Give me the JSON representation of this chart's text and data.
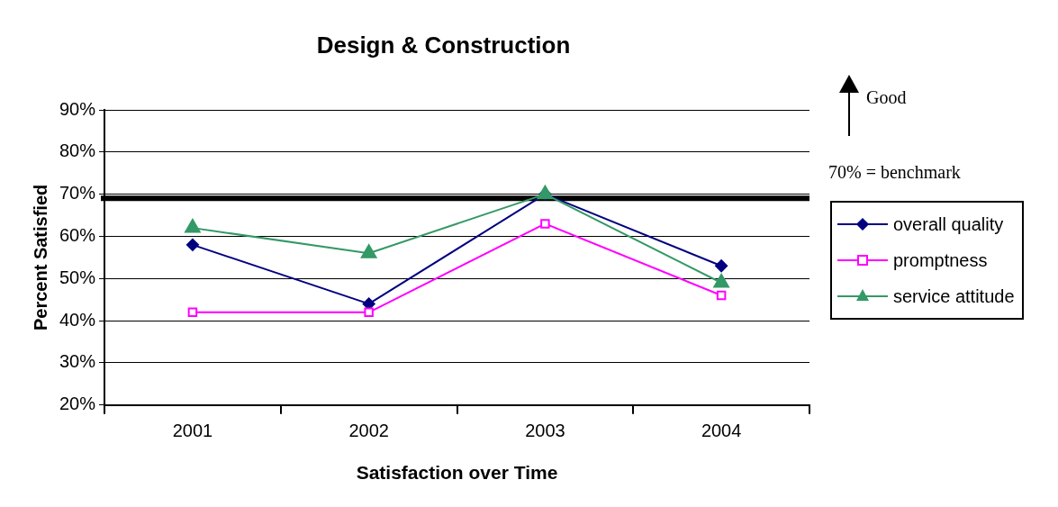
{
  "chart_data": {
    "type": "line",
    "title": "Design & Construction",
    "xlabel": "Satisfaction over Time",
    "ylabel": "Percent Satisfied",
    "categories": [
      "2001",
      "2002",
      "2003",
      "2004"
    ],
    "series": [
      {
        "name": "overall quality",
        "color": "#000080",
        "marker": "diamond",
        "values": [
          58,
          44,
          70,
          53
        ]
      },
      {
        "name": "promptness",
        "color": "#ff00ff",
        "marker": "square",
        "values": [
          42,
          42,
          63,
          46
        ]
      },
      {
        "name": "service attitude",
        "color": "#339966",
        "marker": "triangle",
        "values": [
          62,
          56,
          70,
          49
        ]
      }
    ],
    "ylim": [
      20,
      90
    ],
    "yticks": [
      {
        "value": 20,
        "label": "20%"
      },
      {
        "value": 30,
        "label": "30%"
      },
      {
        "value": 40,
        "label": "40%"
      },
      {
        "value": 50,
        "label": "50%"
      },
      {
        "value": 60,
        "label": "60%"
      },
      {
        "value": 70,
        "label": "70%"
      },
      {
        "value": 80,
        "label": "80%"
      },
      {
        "value": 90,
        "label": "90%"
      }
    ],
    "ref_lines": [
      {
        "axis": "y",
        "value": 69,
        "color": "#000000"
      }
    ],
    "annotations": [
      "Good",
      "70% = benchmark"
    ],
    "grid": "y",
    "legend": "right",
    "line_style": "solid"
  }
}
